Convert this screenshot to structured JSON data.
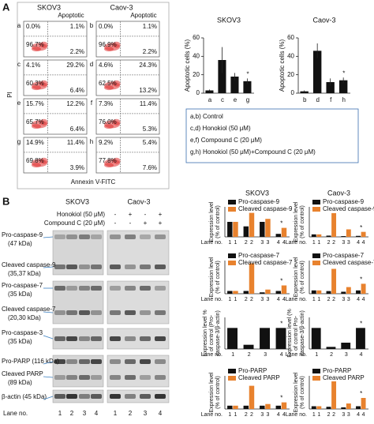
{
  "panel_a": {
    "label": "A",
    "flow": {
      "x_label": "Annexin V-FITC",
      "y_label": "PI",
      "columns": [
        {
          "name": "SKOV3",
          "gate": "Apoptotic"
        },
        {
          "name": "Caov-3",
          "gate": "Apoptotic"
        }
      ],
      "plots": [
        {
          "id": "a",
          "quadrants": [
            "0.0%",
            "1.1%",
            "96.7%",
            "2.2%"
          ]
        },
        {
          "id": "b",
          "quadrants": [
            "0.0%",
            "1.1%",
            "96.9%",
            "2.2%"
          ]
        },
        {
          "id": "c",
          "quadrants": [
            "4.1%",
            "29.2%",
            "60.3%",
            "6.4%"
          ]
        },
        {
          "id": "d",
          "quadrants": [
            "4.6%",
            "24.3%",
            "62.5%",
            "13.2%"
          ]
        },
        {
          "id": "e",
          "quadrants": [
            "15.7%",
            "12.2%",
            "65.7%",
            "6.4%"
          ]
        },
        {
          "id": "f",
          "quadrants": [
            "7.3%",
            "11.4%",
            "76.0%",
            "5.3%"
          ]
        },
        {
          "id": "g",
          "quadrants": [
            "14.9%",
            "11.4%",
            "69.8%",
            "3.9%"
          ]
        },
        {
          "id": "h",
          "quadrants": [
            "9.2%",
            "5.4%",
            "77.8%",
            "7.6%"
          ]
        }
      ]
    },
    "legend": [
      "a,b) Control",
      "c,d) Honokiol (50 μM)",
      "e,f) Compound C (20 μM)",
      "g,h) Honokiol (50 μM)+Compound C (20 μM)"
    ]
  },
  "panel_b": {
    "label": "B",
    "columns": [
      "SKOV3",
      "Caov-3"
    ],
    "treatments": [
      {
        "name": "Honokiol (50 μM)",
        "signs": [
          "-",
          "+",
          "-",
          "+"
        ]
      },
      {
        "name": "Compound C (20 μM)",
        "signs": [
          "-",
          "-",
          "+",
          "+"
        ]
      }
    ],
    "bands": [
      {
        "name": "Pro-caspase-9",
        "size": "(47 kDa)"
      },
      {
        "name": "Cleaved caspase-9",
        "size": "(35,37 kDa)"
      },
      {
        "name": "Pro-caspase-7",
        "size": "(35 kDa)"
      },
      {
        "name": "Cleaved caspase-7",
        "size": "(20,30 kDa)"
      },
      {
        "name": "Pro-caspase-3",
        "size": "(35 kDa)"
      },
      {
        "name": "Pro-PARP (116 kDa)"
      },
      {
        "name": "Cleaved PARP",
        "size": "(89 kDa)"
      },
      {
        "name": "β-actin (45 kDa)"
      }
    ],
    "lane_label": "Lane no.",
    "lanes": [
      "1",
      "2",
      "3",
      "4"
    ]
  },
  "chart_data": [
    {
      "type": "bar",
      "title": "SKOV3",
      "y_label": [
        "Apoptotic cells (%)"
      ],
      "categories": [
        "a",
        "c",
        "e",
        "g"
      ],
      "values": [
        3,
        36,
        18,
        13
      ],
      "errors": [
        1,
        14,
        4,
        3
      ],
      "color": "#111111",
      "ylim": [
        0,
        60
      ],
      "yticks": [
        0,
        20,
        40,
        60
      ],
      "annotation": "*"
    },
    {
      "type": "bar",
      "title": "Caov-3",
      "y_label": [
        "Apoptotic cells (%)"
      ],
      "categories": [
        "b",
        "d",
        "f",
        "h"
      ],
      "values": [
        2,
        46,
        12,
        14
      ],
      "errors": [
        1,
        8,
        4,
        3
      ],
      "color": "#111111",
      "ylim": [
        0,
        60
      ],
      "yticks": [
        0,
        20,
        40,
        60
      ],
      "annotation": "*"
    },
    {
      "type": "grouped-bar",
      "title": "SKOV3",
      "y_label": [
        "Expression level",
        "(% of control)"
      ],
      "x_label": "Lane no.",
      "categories": [
        "1",
        "2",
        "3",
        "4"
      ],
      "series": [
        {
          "name": "Pro-caspase-9",
          "color": "#111111",
          "values": [
            100,
            70,
            100,
            20
          ]
        },
        {
          "name": "Cleaved caspase-9",
          "color": "#e8822e",
          "values": [
            100,
            160,
            120,
            60
          ]
        }
      ],
      "ylim": [
        0,
        200
      ],
      "annotation": "*"
    },
    {
      "type": "grouped-bar",
      "title": "Caov-3",
      "y_label": [
        "Expression level",
        "(% of control)"
      ],
      "x_label": "Lane no.",
      "categories": [
        "1",
        "2",
        "3",
        "4"
      ],
      "series": [
        {
          "name": "Pro-caspase-9",
          "color": "#111111",
          "values": [
            100,
            50,
            30,
            40
          ]
        },
        {
          "name": "Cleaved caspase-9",
          "color": "#e8822e",
          "values": [
            100,
            950,
            300,
            200
          ]
        }
      ],
      "ylim": [
        0,
        1200
      ],
      "annotation": "*"
    },
    {
      "type": "grouped-bar",
      "y_label": [
        "Expression level",
        "(% of control)"
      ],
      "x_label": "Lane no.",
      "categories": [
        "1",
        "2",
        "3",
        "4"
      ],
      "series": [
        {
          "name": "Pro-caspase-7",
          "color": "#111111",
          "values": [
            100,
            100,
            50,
            100
          ]
        },
        {
          "name": "Cleaved caspase-7",
          "color": "#e8822e",
          "values": [
            100,
            1100,
            150,
            300
          ]
        }
      ],
      "ylim": [
        0,
        1200
      ],
      "annotation": "*"
    },
    {
      "type": "grouped-bar",
      "y_label": [
        "Expression level",
        "(% of control)"
      ],
      "x_label": "Lane no.",
      "categories": [
        "1",
        "2",
        "3",
        "4"
      ],
      "series": [
        {
          "name": "Pro-caspase-7",
          "color": "#111111",
          "values": [
            100,
            80,
            60,
            100
          ]
        },
        {
          "name": "Cleaved caspase-7",
          "color": "#e8822e",
          "values": [
            100,
            750,
            200,
            300
          ]
        }
      ],
      "ylim": [
        0,
        1000
      ],
      "annotation": "*"
    },
    {
      "type": "bar",
      "y_label": [
        "Expression level %",
        "of control (Pro-",
        "caspase-3/β-actin)"
      ],
      "x_label": "Lane no.",
      "categories": [
        "1",
        "2",
        "3",
        "4"
      ],
      "values": [
        100,
        20,
        100,
        100
      ],
      "color": "#111111",
      "ylim": [
        0,
        150
      ],
      "annotation": "*"
    },
    {
      "type": "bar",
      "y_label": [
        "Expression level (%",
        "of control Pro-",
        "caspase-3/β-actin)"
      ],
      "x_label": "Lane no.",
      "categories": [
        "1",
        "2",
        "3",
        "4"
      ],
      "values": [
        100,
        10,
        30,
        100
      ],
      "color": "#111111",
      "ylim": [
        0,
        150
      ],
      "annotation": "*"
    },
    {
      "type": "grouped-bar",
      "y_label": [
        "Expression level",
        "(% of control)"
      ],
      "x_label": "Lane no.",
      "categories": [
        "1",
        "2",
        "3",
        "4"
      ],
      "series": [
        {
          "name": "Pro-PARP",
          "color": "#111111",
          "values": [
            100,
            100,
            100,
            100
          ]
        },
        {
          "name": "Cleaved PARP",
          "color": "#e8822e",
          "values": [
            100,
            700,
            150,
            200
          ]
        }
      ],
      "ylim": [
        0,
        1000
      ],
      "annotation": "*"
    },
    {
      "type": "grouped-bar",
      "y_label": [
        "Expression level",
        "(% of control)"
      ],
      "x_label": "Lane no.",
      "categories": [
        "1",
        "2",
        "3",
        "4"
      ],
      "series": [
        {
          "name": "Pro-PARP",
          "color": "#111111",
          "values": [
            100,
            80,
            60,
            100
          ]
        },
        {
          "name": "Cleaved PARP",
          "color": "#e8822e",
          "values": [
            100,
            1000,
            200,
            400
          ]
        }
      ],
      "ylim": [
        0,
        1200
      ],
      "annotation": "*"
    }
  ]
}
